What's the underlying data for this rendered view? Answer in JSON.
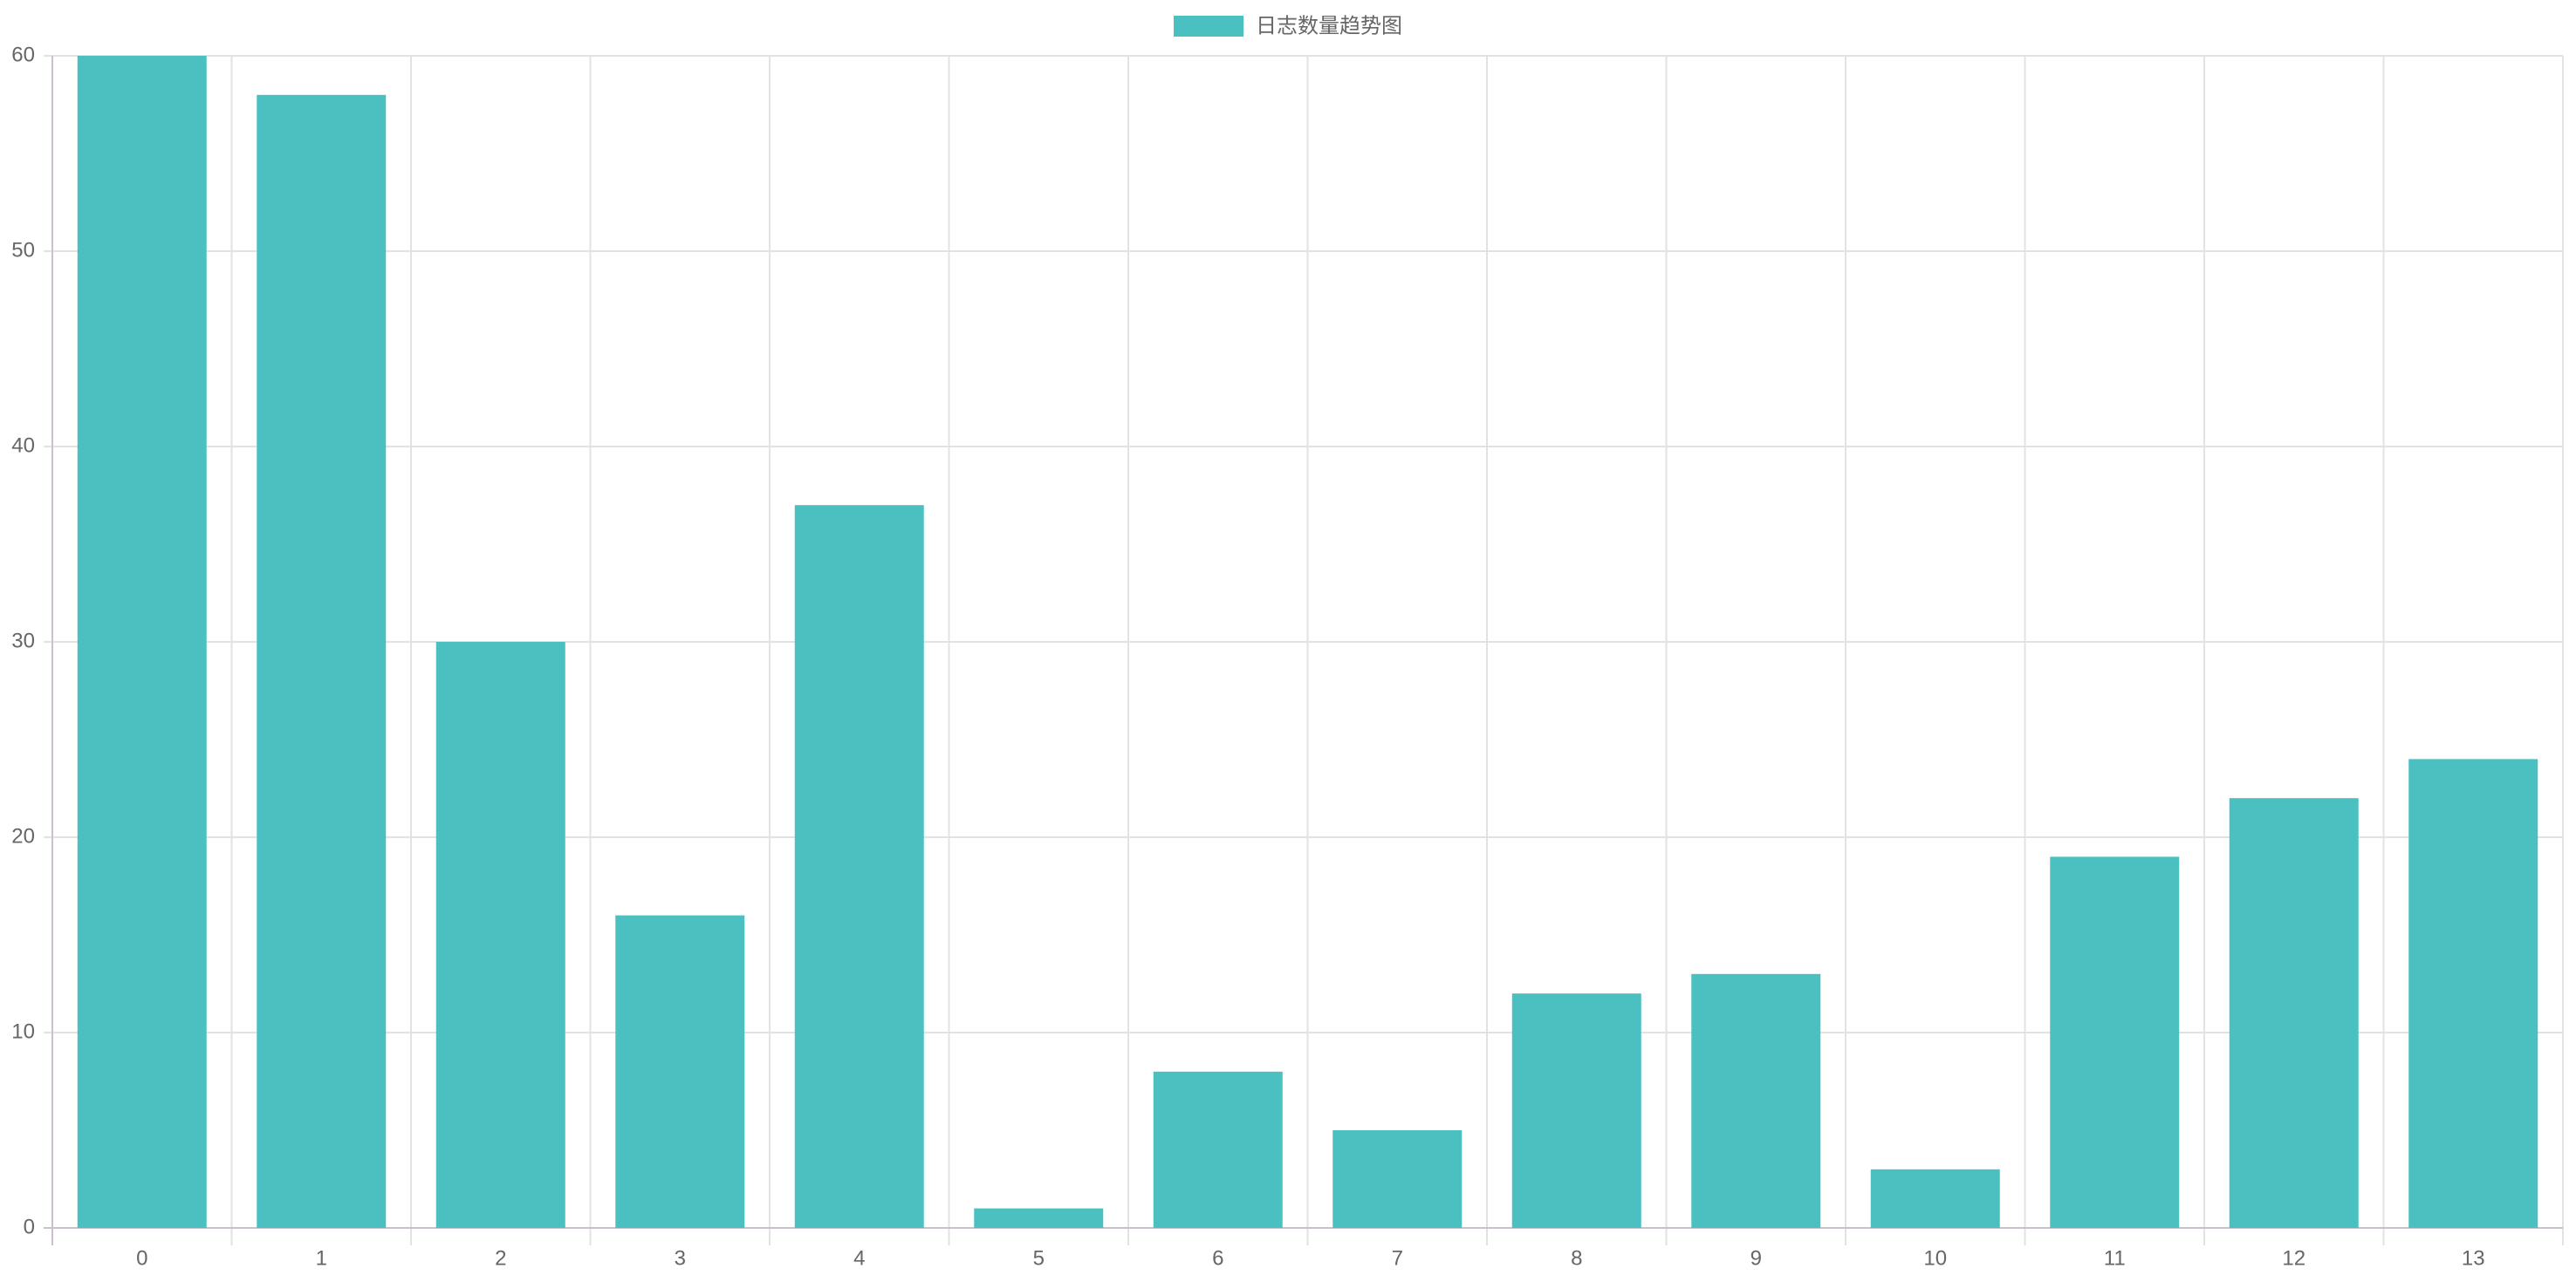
{
  "chart_data": {
    "type": "bar",
    "categories": [
      "0",
      "1",
      "2",
      "3",
      "4",
      "5",
      "6",
      "7",
      "8",
      "9",
      "10",
      "11",
      "12",
      "13"
    ],
    "series": [
      {
        "name": "日志数量趋势图",
        "color": "#4bc0c0",
        "values": [
          60,
          58,
          30,
          16,
          37,
          1,
          8,
          5,
          12,
          13,
          3,
          19,
          22,
          24
        ]
      }
    ],
    "ylim": [
      0,
      60
    ],
    "yticks": [
      0,
      10,
      20,
      30,
      40,
      50,
      60
    ],
    "grid": true,
    "legend": "top"
  }
}
